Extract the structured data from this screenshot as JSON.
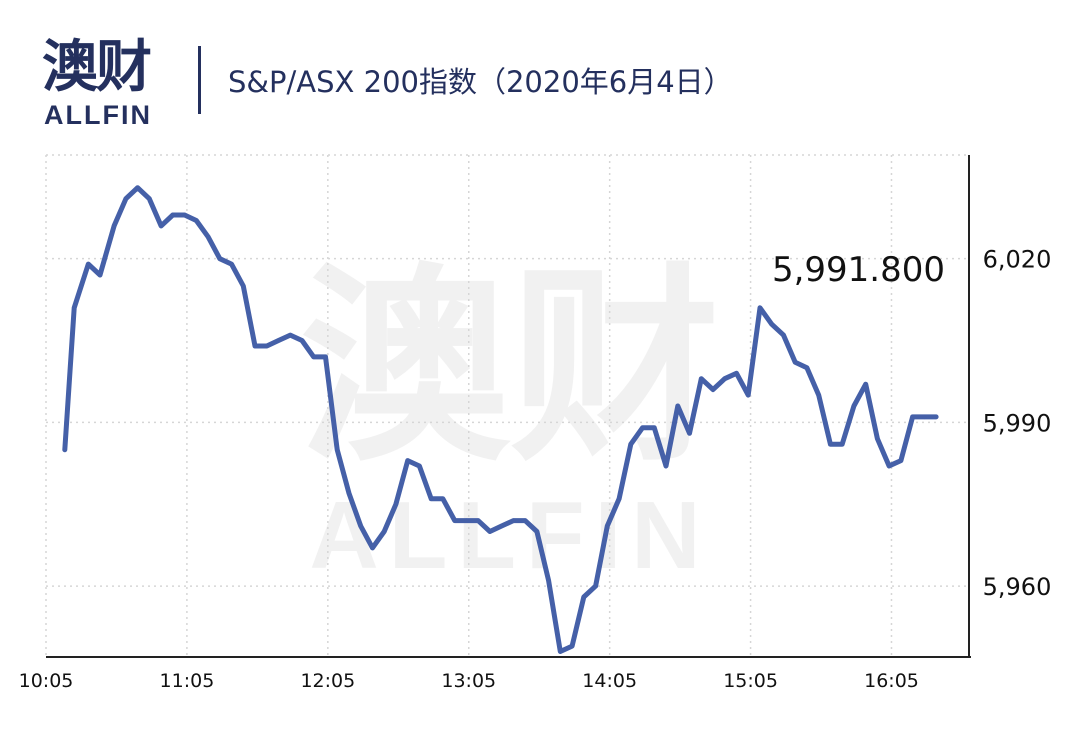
{
  "header": {
    "logo_cn": "澳财",
    "logo_en": "ALLFIN",
    "title": "S&P/ASX 200指数（2020年6月4日）"
  },
  "watermark": {
    "cn": "澳财",
    "en": "ALLFIN"
  },
  "colors": {
    "line": "#4560a8",
    "brand": "#24305e",
    "accent": "#c5304f",
    "grid": "#d6d6d6"
  },
  "chart_data": {
    "type": "line",
    "title": "S&P/ASX 200指数（2020年6月4日）",
    "x_tick_labels": [
      "10:05",
      "11:05",
      "12:05",
      "13:05",
      "14:05",
      "15:05",
      "16:05"
    ],
    "y_tick_labels": [
      "6,020",
      "5,990",
      "5,960"
    ],
    "y_ticks": [
      6020,
      5990,
      5960
    ],
    "ylim": [
      5947,
      6039
    ],
    "xlim_minutes": [
      0,
      393
    ],
    "grid": true,
    "annotation": {
      "text": "5,991.800",
      "x": "15:05",
      "y": 6011.5
    },
    "series": [
      {
        "x": [
          "10:13",
          "10:17",
          "10:23",
          "10:28",
          "10:34",
          "10:39",
          "10:44",
          "10:49",
          "10:54",
          "10:59",
          "11:04",
          "11:09",
          "11:14",
          "11:19",
          "11:24",
          "11:29",
          "11:34",
          "11:39",
          "11:44",
          "11:49",
          "11:54",
          "11:59",
          "12:04",
          "12:09",
          "12:14",
          "12:19",
          "12:24",
          "12:29",
          "12:34",
          "12:39",
          "12:44",
          "12:49",
          "12:54",
          "12:59",
          "13:04",
          "13:09",
          "13:14",
          "13:19",
          "13:24",
          "13:29",
          "13:34",
          "13:39",
          "13:44",
          "13:49",
          "13:54",
          "13:59",
          "14:04",
          "14:09",
          "14:14",
          "14:19",
          "14:24",
          "14:29",
          "14:34",
          "14:39",
          "14:44",
          "14:49",
          "14:54",
          "14:59",
          "15:04",
          "15:09",
          "15:14",
          "15:19",
          "15:24",
          "15:29",
          "15:34",
          "15:39",
          "15:44",
          "15:49",
          "15:54",
          "15:59",
          "16:04",
          "16:09",
          "16:14",
          "16:19",
          "16:24"
        ],
        "values": [
          5985,
          6011,
          6019,
          6017,
          6026,
          6031,
          6033,
          6031,
          6026,
          6028,
          6028,
          6027,
          6024,
          6020,
          6019,
          6015,
          6004,
          6004,
          6005,
          6006,
          6005,
          6002,
          6002,
          5985,
          5977,
          5971,
          5967,
          5970,
          5975,
          5983,
          5982,
          5976,
          5976,
          5972,
          5972,
          5972,
          5970,
          5971,
          5972,
          5972,
          5970,
          5961,
          5948,
          5949,
          5958,
          5960,
          5971,
          5976,
          5986,
          5989,
          5989,
          5982,
          5993,
          5988,
          5998,
          5996,
          5998,
          5999,
          5995,
          6011,
          6008,
          6006,
          6001,
          6000,
          5995,
          5986,
          5986,
          5993,
          5997,
          5987,
          5982,
          5983,
          5991,
          5991,
          5991
        ]
      }
    ]
  }
}
